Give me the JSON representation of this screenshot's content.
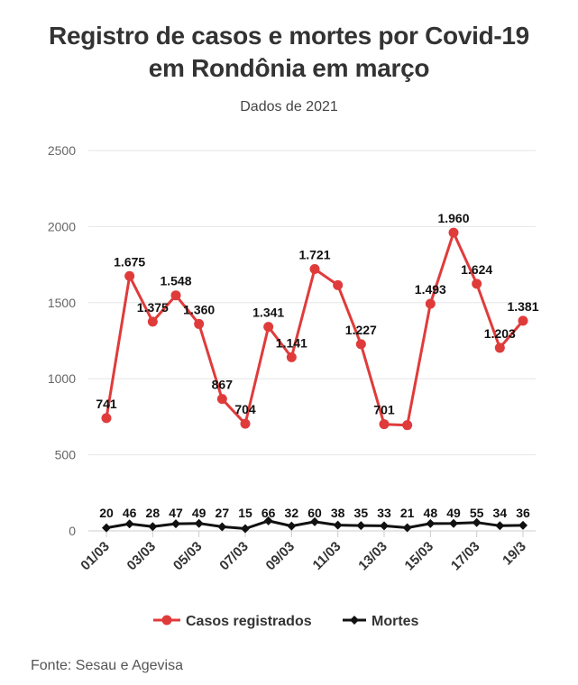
{
  "title_line1": "Registro de casos e mortes por Covid-19",
  "title_line2": "em Rondônia em março",
  "subtitle": "Dados de 2021",
  "source": "Fonte: Sesau e Agevisa",
  "colors": {
    "cases": "#e03b3b",
    "deaths": "#111111",
    "grid": "#e6e6e6"
  },
  "chart_data": {
    "type": "line",
    "x": [
      "01/03",
      "02/03",
      "03/03",
      "04/03",
      "05/03",
      "06/03",
      "07/03",
      "08/03",
      "09/03",
      "10/03",
      "11/03",
      "12/03",
      "13/03",
      "14/03",
      "15/03",
      "16/03",
      "17/03",
      "18/03",
      "19/3"
    ],
    "x_tick_labels": [
      "01/03",
      "03/03",
      "05/03",
      "07/03",
      "09/03",
      "11/03",
      "13/03",
      "15/03",
      "17/03",
      "19/3"
    ],
    "ylim": [
      0,
      2500
    ],
    "y_ticks": [
      "0",
      "500",
      "1000",
      "1500",
      "2000",
      "2500"
    ],
    "grid": true,
    "legend_position": "bottom",
    "series": [
      {
        "name": "Casos registrados",
        "values": [
          741,
          1675,
          1375,
          1548,
          1360,
          867,
          704,
          1341,
          1141,
          1721,
          1615,
          1227,
          701,
          695,
          1493,
          1960,
          1624,
          1203,
          1381
        ],
        "labels": [
          "741",
          "1.675",
          "1.375",
          "1.548",
          "1.360",
          "867",
          "704",
          "1.341",
          "1.141",
          "1.721",
          "",
          "1.227",
          "701",
          "",
          "1.493",
          "1.960",
          "1.624",
          "1.203",
          "1.381"
        ]
      },
      {
        "name": "Mortes",
        "values": [
          20,
          46,
          28,
          47,
          49,
          27,
          15,
          66,
          32,
          60,
          38,
          35,
          33,
          21,
          48,
          49,
          55,
          34,
          36
        ],
        "labels": [
          "20",
          "46",
          "28",
          "47",
          "49",
          "27",
          "15",
          "66",
          "32",
          "60",
          "38",
          "35",
          "33",
          "21",
          "48",
          "49",
          "55",
          "34",
          "36"
        ]
      }
    ]
  }
}
